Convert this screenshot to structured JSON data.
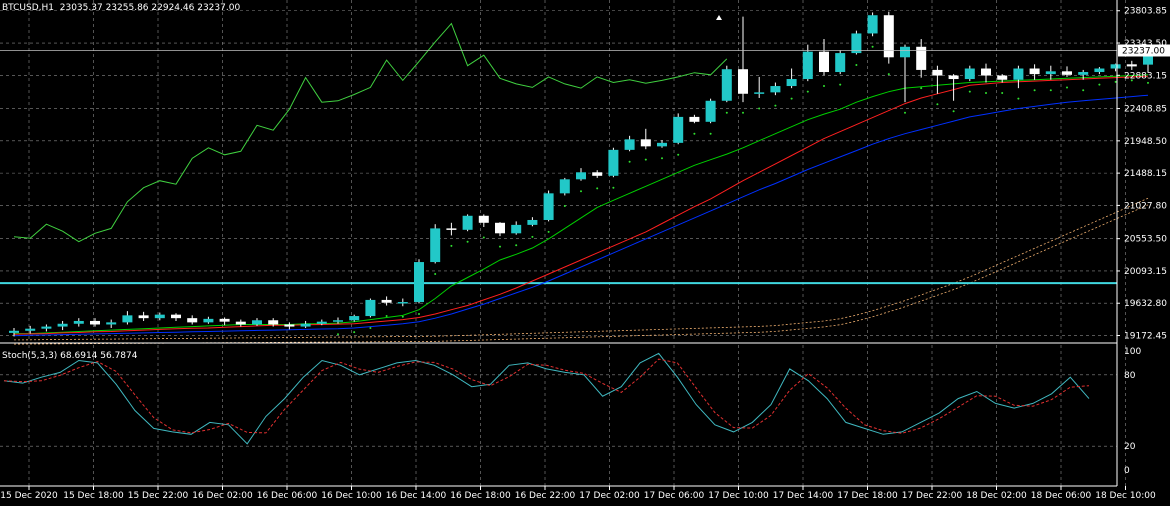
{
  "header": {
    "symbol": "BTCUSD,H1",
    "open": "23035.37",
    "high": "23255.86",
    "low": "22924.46",
    "close": "23237.00"
  },
  "oscillator": {
    "label": "Stoch(5,3,3) 68.6914 56.7874",
    "tick_labels": [
      "100",
      "80",
      "20",
      "0"
    ],
    "levels": [
      20,
      80
    ]
  },
  "current_price_label": "23237.00",
  "colors": {
    "background": "#000000",
    "grid": "#8a8a8a",
    "bull_candle": "#22c8c8",
    "bear_candle": "#ffffff",
    "ma_fast": "#00d000",
    "ma_mid": "#ff2020",
    "ma_slow": "#2020ff",
    "ma_long": "#0030ff",
    "chikou": "#40d040",
    "cloud": "#f0b070",
    "sar": "#30e030",
    "hline": "#40d8e0",
    "stoch_main": "#40b8c0",
    "stoch_signal": "#e03030"
  },
  "chart_data": {
    "type": "candlestick",
    "symbol": "BTCUSD",
    "timeframe": "H1",
    "ylim": [
      19080,
      23900
    ],
    "y_tick_labels": [
      "23803.85",
      "23343.50",
      "22883.15",
      "22408.85",
      "21948.50",
      "21488.15",
      "21027.80",
      "20553.50",
      "20093.15",
      "19632.80",
      "19172.45"
    ],
    "x_tick_labels": [
      "15 Dec 2020",
      "15 Dec 18:00",
      "15 Dec 22:00",
      "16 Dec 02:00",
      "16 Dec 06:00",
      "16 Dec 10:00",
      "16 Dec 14:00",
      "16 Dec 18:00",
      "16 Dec 22:00",
      "17 Dec 02:00",
      "17 Dec 06:00",
      "17 Dec 10:00",
      "17 Dec 14:00",
      "17 Dec 18:00",
      "17 Dec 22:00",
      "18 Dec 02:00",
      "18 Dec 06:00",
      "18 Dec 10:00"
    ],
    "grid": true,
    "current_price": 23237.0,
    "horizontal_level": 19920,
    "candles": [
      {
        "o": 19210,
        "h": 19280,
        "l": 19160,
        "c": 19240
      },
      {
        "o": 19240,
        "h": 19310,
        "l": 19200,
        "c": 19270
      },
      {
        "o": 19270,
        "h": 19330,
        "l": 19230,
        "c": 19300
      },
      {
        "o": 19300,
        "h": 19380,
        "l": 19250,
        "c": 19340
      },
      {
        "o": 19340,
        "h": 19420,
        "l": 19300,
        "c": 19380
      },
      {
        "o": 19380,
        "h": 19420,
        "l": 19300,
        "c": 19330
      },
      {
        "o": 19330,
        "h": 19400,
        "l": 19280,
        "c": 19360
      },
      {
        "o": 19360,
        "h": 19520,
        "l": 19330,
        "c": 19460
      },
      {
        "o": 19460,
        "h": 19510,
        "l": 19380,
        "c": 19420
      },
      {
        "o": 19420,
        "h": 19500,
        "l": 19390,
        "c": 19470
      },
      {
        "o": 19470,
        "h": 19490,
        "l": 19380,
        "c": 19420
      },
      {
        "o": 19420,
        "h": 19460,
        "l": 19330,
        "c": 19360
      },
      {
        "o": 19360,
        "h": 19440,
        "l": 19340,
        "c": 19410
      },
      {
        "o": 19410,
        "h": 19430,
        "l": 19320,
        "c": 19370
      },
      {
        "o": 19370,
        "h": 19400,
        "l": 19300,
        "c": 19330
      },
      {
        "o": 19330,
        "h": 19420,
        "l": 19310,
        "c": 19390
      },
      {
        "o": 19390,
        "h": 19420,
        "l": 19300,
        "c": 19330
      },
      {
        "o": 19330,
        "h": 19360,
        "l": 19260,
        "c": 19300
      },
      {
        "o": 19300,
        "h": 19380,
        "l": 19280,
        "c": 19340
      },
      {
        "o": 19340,
        "h": 19400,
        "l": 19320,
        "c": 19370
      },
      {
        "o": 19370,
        "h": 19430,
        "l": 19340,
        "c": 19390
      },
      {
        "o": 19390,
        "h": 19470,
        "l": 19370,
        "c": 19450
      },
      {
        "o": 19450,
        "h": 19700,
        "l": 19430,
        "c": 19680
      },
      {
        "o": 19680,
        "h": 19730,
        "l": 19600,
        "c": 19640
      },
      {
        "o": 19640,
        "h": 19700,
        "l": 19590,
        "c": 19650
      },
      {
        "o": 19650,
        "h": 20260,
        "l": 19630,
        "c": 20220
      },
      {
        "o": 20220,
        "h": 20760,
        "l": 20200,
        "c": 20700
      },
      {
        "o": 20700,
        "h": 20780,
        "l": 20600,
        "c": 20680
      },
      {
        "o": 20680,
        "h": 20900,
        "l": 20660,
        "c": 20880
      },
      {
        "o": 20880,
        "h": 20900,
        "l": 20720,
        "c": 20780
      },
      {
        "o": 20780,
        "h": 20790,
        "l": 20590,
        "c": 20630
      },
      {
        "o": 20630,
        "h": 20800,
        "l": 20610,
        "c": 20750
      },
      {
        "o": 20750,
        "h": 20860,
        "l": 20730,
        "c": 20820
      },
      {
        "o": 20820,
        "h": 21240,
        "l": 20800,
        "c": 21200
      },
      {
        "o": 21200,
        "h": 21420,
        "l": 21170,
        "c": 21400
      },
      {
        "o": 21400,
        "h": 21560,
        "l": 21380,
        "c": 21500
      },
      {
        "o": 21500,
        "h": 21530,
        "l": 21420,
        "c": 21450
      },
      {
        "o": 21450,
        "h": 21850,
        "l": 21430,
        "c": 21820
      },
      {
        "o": 21820,
        "h": 22020,
        "l": 21800,
        "c": 21970
      },
      {
        "o": 21970,
        "h": 22120,
        "l": 21830,
        "c": 21870
      },
      {
        "o": 21870,
        "h": 21960,
        "l": 21850,
        "c": 21920
      },
      {
        "o": 21920,
        "h": 22340,
        "l": 21900,
        "c": 22290
      },
      {
        "o": 22290,
        "h": 22320,
        "l": 22200,
        "c": 22220
      },
      {
        "o": 22220,
        "h": 22550,
        "l": 22200,
        "c": 22520
      },
      {
        "o": 22520,
        "h": 23020,
        "l": 22500,
        "c": 22970
      },
      {
        "o": 22970,
        "h": 23720,
        "l": 22500,
        "c": 22620
      },
      {
        "o": 22620,
        "h": 22860,
        "l": 22560,
        "c": 22640
      },
      {
        "o": 22640,
        "h": 22780,
        "l": 22600,
        "c": 22730
      },
      {
        "o": 22730,
        "h": 22980,
        "l": 22700,
        "c": 22830
      },
      {
        "o": 22830,
        "h": 23320,
        "l": 22800,
        "c": 23220
      },
      {
        "o": 23220,
        "h": 23400,
        "l": 22880,
        "c": 22930
      },
      {
        "o": 22930,
        "h": 23240,
        "l": 22900,
        "c": 23200
      },
      {
        "o": 23200,
        "h": 23520,
        "l": 23180,
        "c": 23480
      },
      {
        "o": 23480,
        "h": 23780,
        "l": 23440,
        "c": 23740
      },
      {
        "o": 23740,
        "h": 23790,
        "l": 23050,
        "c": 23140
      },
      {
        "o": 23140,
        "h": 23320,
        "l": 22500,
        "c": 23290
      },
      {
        "o": 23290,
        "h": 23400,
        "l": 22850,
        "c": 22960
      },
      {
        "o": 22960,
        "h": 23020,
        "l": 22620,
        "c": 22880
      },
      {
        "o": 22880,
        "h": 22900,
        "l": 22520,
        "c": 22830
      },
      {
        "o": 22830,
        "h": 23020,
        "l": 22800,
        "c": 22980
      },
      {
        "o": 22980,
        "h": 23050,
        "l": 22780,
        "c": 22880
      },
      {
        "o": 22880,
        "h": 22900,
        "l": 22780,
        "c": 22820
      },
      {
        "o": 22820,
        "h": 23020,
        "l": 22700,
        "c": 22980
      },
      {
        "o": 22980,
        "h": 23040,
        "l": 22820,
        "c": 22900
      },
      {
        "o": 22900,
        "h": 23020,
        "l": 22820,
        "c": 22940
      },
      {
        "o": 22940,
        "h": 23010,
        "l": 22860,
        "c": 22890
      },
      {
        "o": 22890,
        "h": 22960,
        "l": 22820,
        "c": 22930
      },
      {
        "o": 22930,
        "h": 23000,
        "l": 22900,
        "c": 22980
      },
      {
        "o": 22980,
        "h": 23050,
        "l": 22940,
        "c": 23040
      },
      {
        "o": 23040,
        "h": 23090,
        "l": 22960,
        "c": 23010
      },
      {
        "o": 23035.37,
        "h": 23255.86,
        "l": 22924.46,
        "c": 23237.0
      }
    ],
    "ma_fast": [
      19200,
      19200,
      19210,
      19220,
      19230,
      19240,
      19250,
      19260,
      19270,
      19280,
      19290,
      19300,
      19310,
      19320,
      19330,
      19330,
      19330,
      19330,
      19340,
      19340,
      19350,
      19370,
      19400,
      19430,
      19460,
      19540,
      19700,
      19880,
      20000,
      20120,
      20250,
      20330,
      20420,
      20550,
      20700,
      20850,
      21000,
      21100,
      21200,
      21300,
      21400,
      21500,
      21600,
      21680,
      21760,
      21850,
      21950,
      22050,
      22150,
      22250,
      22330,
      22400,
      22500,
      22580,
      22650,
      22700,
      22720,
      22740,
      22760,
      22780,
      22790,
      22800,
      22810,
      22820,
      22830,
      22840,
      22850,
      22860,
      22870,
      22880,
      22890
    ],
    "ma_mid": [
      19190,
      19195,
      19200,
      19210,
      19215,
      19225,
      19230,
      19240,
      19250,
      19260,
      19270,
      19275,
      19280,
      19290,
      19300,
      19310,
      19320,
      19320,
      19325,
      19330,
      19335,
      19340,
      19360,
      19380,
      19400,
      19430,
      19480,
      19540,
      19600,
      19680,
      19760,
      19850,
      19950,
      20050,
      20150,
      20250,
      20350,
      20450,
      20550,
      20650,
      20770,
      20890,
      21010,
      21120,
      21250,
      21380,
      21500,
      21620,
      21740,
      21860,
      21980,
      22080,
      22180,
      22280,
      22380,
      22480,
      22560,
      22620,
      22680,
      22740,
      22760,
      22780,
      22790,
      22800,
      22810,
      22820,
      22830,
      22840,
      22850,
      22860,
      22870
    ],
    "ma_slow": [
      19170,
      19175,
      19180,
      19185,
      19190,
      19195,
      19200,
      19205,
      19210,
      19215,
      19220,
      19225,
      19230,
      19235,
      19240,
      19245,
      19250,
      19255,
      19260,
      19265,
      19270,
      19280,
      19300,
      19320,
      19340,
      19370,
      19420,
      19480,
      19550,
      19620,
      19700,
      19780,
      19860,
      19950,
      20050,
      20150,
      20250,
      20350,
      20450,
      20550,
      20650,
      20750,
      20850,
      20950,
      21050,
      21150,
      21250,
      21340,
      21440,
      21540,
      21630,
      21720,
      21810,
      21900,
      21980,
      22050,
      22110,
      22170,
      22230,
      22290,
      22330,
      22370,
      22410,
      22440,
      22470,
      22500,
      22520,
      22540,
      22560,
      22580,
      22600
    ]
  }
}
